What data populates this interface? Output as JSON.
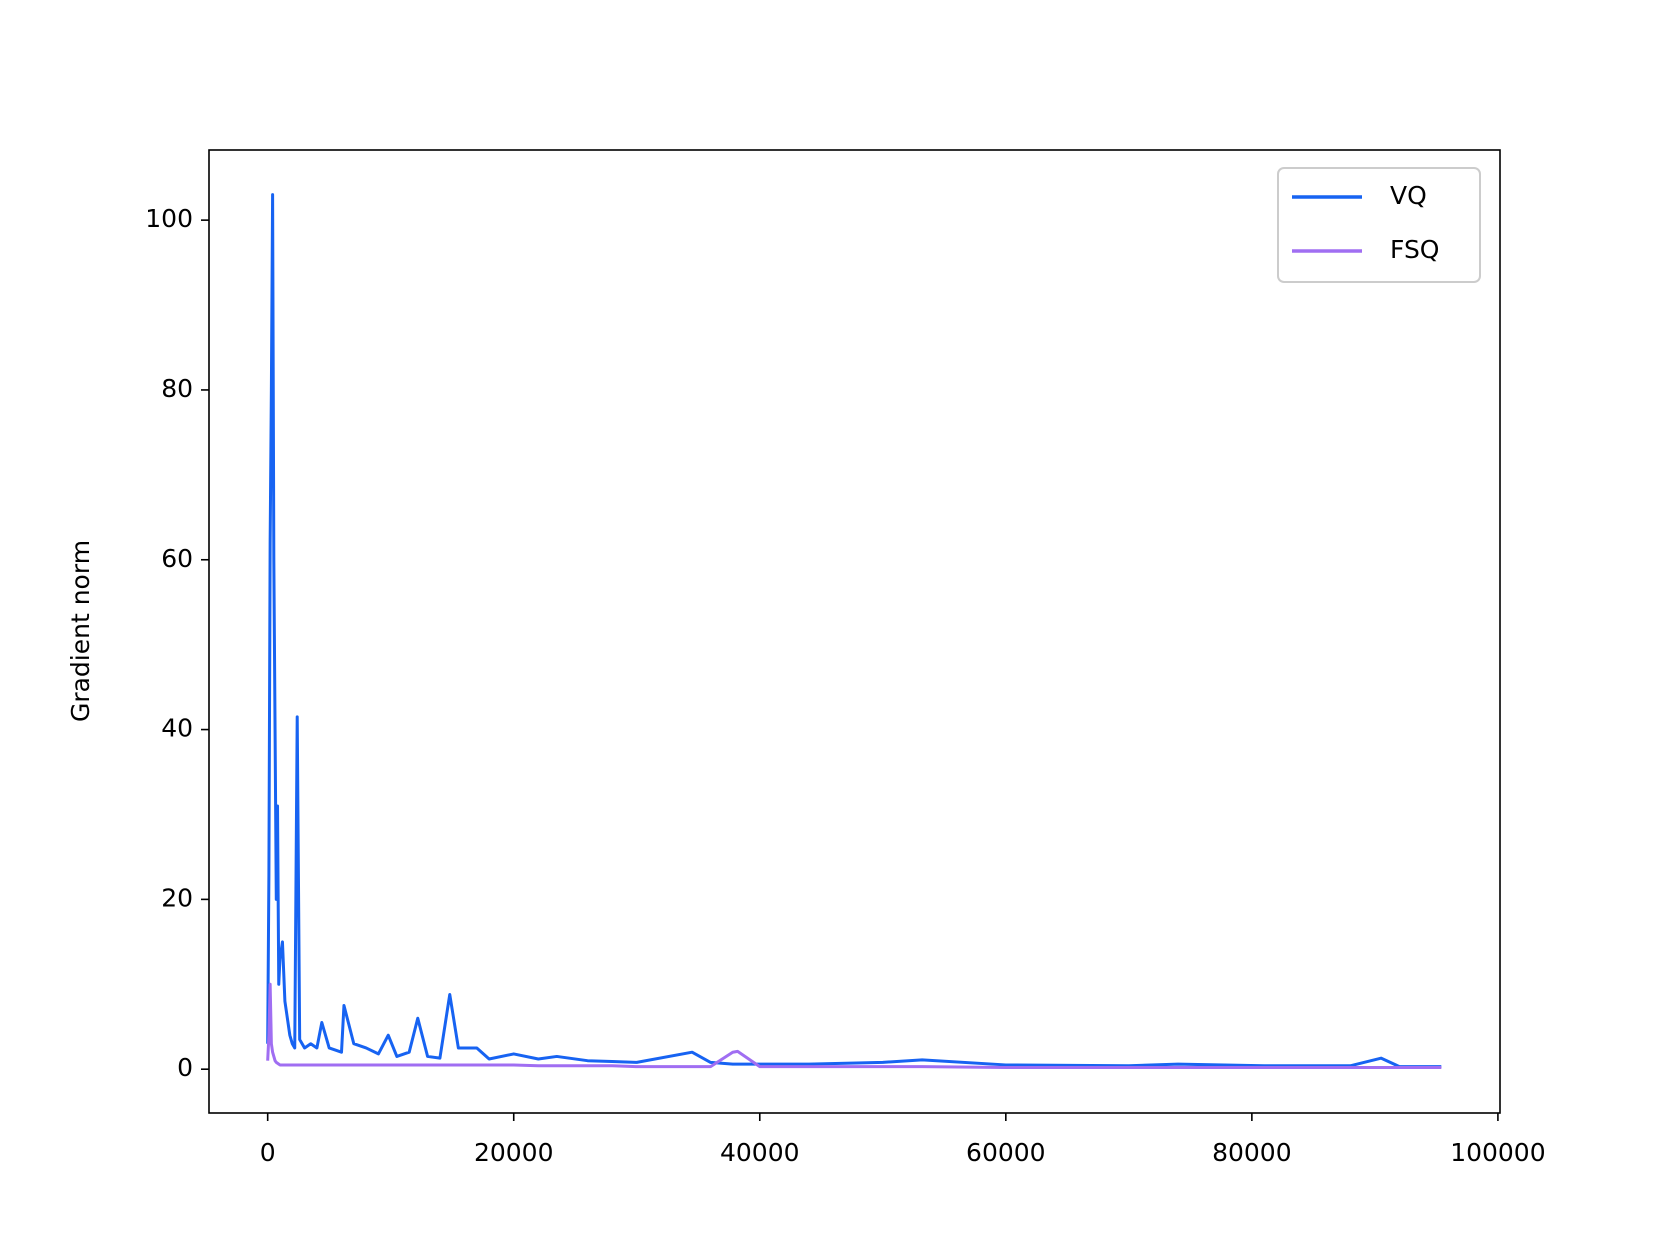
{
  "chart_data": {
    "type": "line",
    "ylabel": "Gradient norm",
    "x": [
      0,
      100,
      200,
      300,
      400,
      500,
      600,
      700,
      800,
      900,
      1000,
      1200,
      1400,
      1600,
      1800,
      2000,
      2200,
      2400,
      2600,
      3000,
      3500,
      4000,
      4400,
      5000,
      6000,
      6200,
      7000,
      8000,
      9000,
      9800,
      10500,
      11500,
      12200,
      13000,
      14000,
      14800,
      15500,
      17000,
      18000,
      20000,
      22000,
      23500,
      26000,
      28000,
      30000,
      34500,
      36000,
      37800,
      38200,
      40000,
      44000,
      50000,
      53200,
      60000,
      70000,
      74000,
      81000,
      88000,
      90500,
      92000,
      95400
    ],
    "series": [
      {
        "name": "VQ",
        "color": "#1763f2",
        "values": [
          3,
          23,
          62,
          80,
          103,
          60,
          40,
          20,
          31,
          10,
          13,
          15,
          8,
          6,
          4,
          3,
          2.5,
          41.5,
          3.5,
          2.5,
          3,
          2.5,
          5.5,
          2.5,
          2,
          7.5,
          3,
          2.5,
          1.8,
          4,
          1.5,
          2,
          6,
          1.5,
          1.3,
          8.8,
          2.5,
          2.5,
          1.2,
          1.8,
          1.2,
          1.5,
          1,
          0.9,
          0.8,
          2,
          0.8,
          0.6,
          0.6,
          0.6,
          0.6,
          0.8,
          1.1,
          0.5,
          0.4,
          0.6,
          0.4,
          0.4,
          1.3,
          0.3,
          0.3
        ]
      },
      {
        "name": "FSQ",
        "color": "#a06ef2",
        "values": [
          1,
          4,
          10,
          3,
          2,
          1.5,
          1,
          0.8,
          0.7,
          0.6,
          0.5,
          0.5,
          0.5,
          0.5,
          0.5,
          0.5,
          0.5,
          0.5,
          0.5,
          0.5,
          0.5,
          0.5,
          0.5,
          0.5,
          0.5,
          0.5,
          0.5,
          0.5,
          0.5,
          0.5,
          0.5,
          0.5,
          0.5,
          0.5,
          0.5,
          0.5,
          0.5,
          0.5,
          0.5,
          0.5,
          0.4,
          0.4,
          0.4,
          0.4,
          0.3,
          0.3,
          0.3,
          2,
          2.1,
          0.3,
          0.3,
          0.3,
          0.3,
          0.2,
          0.2,
          0.2,
          0.2,
          0.2,
          0.2,
          0.2,
          0.2
        ]
      }
    ],
    "xlim": [
      -4770,
      100170
    ],
    "ylim": [
      -5.16,
      108.26
    ],
    "xticks": [
      0,
      20000,
      40000,
      60000,
      80000,
      100000
    ],
    "yticks": [
      0,
      20,
      40,
      60,
      80,
      100
    ],
    "legend": "upper right"
  }
}
